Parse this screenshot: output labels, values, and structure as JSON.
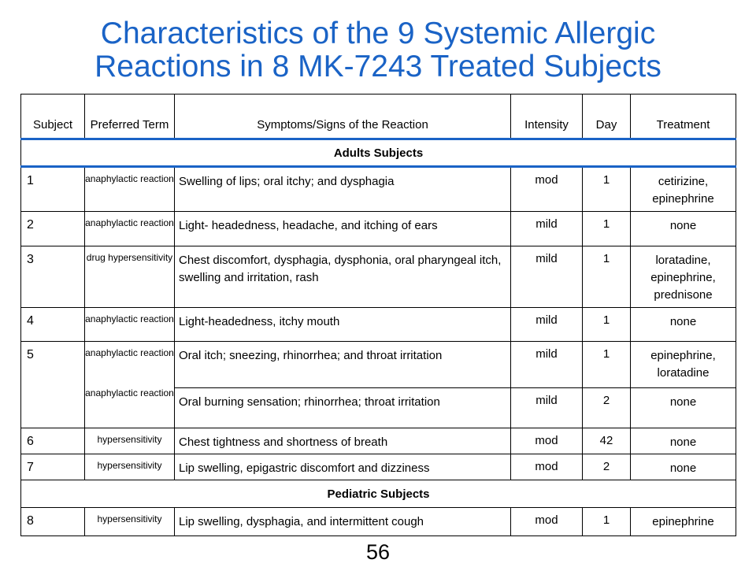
{
  "title": {
    "line1": "Characteristics of the 9 Systemic Allergic",
    "line2": "Reactions in 8 MK-7243 Treated Subjects"
  },
  "table": {
    "headers": {
      "subject": "Subject",
      "preferred_term": "Preferred Term",
      "symptoms": "Symptoms/Signs of the Reaction",
      "intensity": "Intensity",
      "day": "Day",
      "treatment": "Treatment"
    },
    "sections": {
      "adults": "Adults Subjects",
      "pediatric": "Pediatric Subjects"
    },
    "rows": [
      {
        "subject": "1",
        "term": "anaphylactic reaction",
        "symptoms": "Swelling of lips; oral itchy; and dysphagia",
        "intensity": "mod",
        "day": "1",
        "treatment": "cetirizine, epinephrine"
      },
      {
        "subject": "2",
        "term": "anaphylactic reaction",
        "symptoms": "Light- headedness, headache, and itching of ears",
        "intensity": "mild",
        "day": "1",
        "treatment": "none"
      },
      {
        "subject": "3",
        "term": "drug hypersensitivity",
        "symptoms": "Chest discomfort, dysphagia, dysphonia, oral pharyngeal itch, swelling and irritation, rash",
        "intensity": "mild",
        "day": "1",
        "treatment": "loratadine, epinephrine, prednisone"
      },
      {
        "subject": "4",
        "term": "anaphylactic reaction",
        "symptoms": "Light-headedness, itchy mouth",
        "intensity": "mild",
        "day": "1",
        "treatment": "none"
      },
      {
        "subject": "5",
        "term": "anaphylactic reaction",
        "symptoms": "Oral itch; sneezing, rhinorrhea; and throat irritation",
        "intensity": "mild",
        "day": "1",
        "treatment": "epinephrine, loratadine"
      },
      {
        "subject": "",
        "term": "anaphylactic reaction",
        "symptoms": "Oral burning sensation; rhinorrhea; throat irritation",
        "intensity": "mild",
        "day": "2",
        "treatment": "none"
      },
      {
        "subject": "6",
        "term": "hypersensitivity",
        "symptoms": "Chest tightness and shortness of  breath",
        "intensity": "mod",
        "day": "42",
        "treatment": "none"
      },
      {
        "subject": "7",
        "term": "hypersensitivity",
        "symptoms": "Lip swelling, epigastric discomfort and dizziness",
        "intensity": "mod",
        "day": "2",
        "treatment": "none"
      },
      {
        "subject": "8",
        "term": "hypersensitivity",
        "symptoms": "Lip swelling, dysphagia, and intermittent cough",
        "intensity": "mod",
        "day": "1",
        "treatment": "epinephrine"
      }
    ]
  },
  "page_number": "56"
}
